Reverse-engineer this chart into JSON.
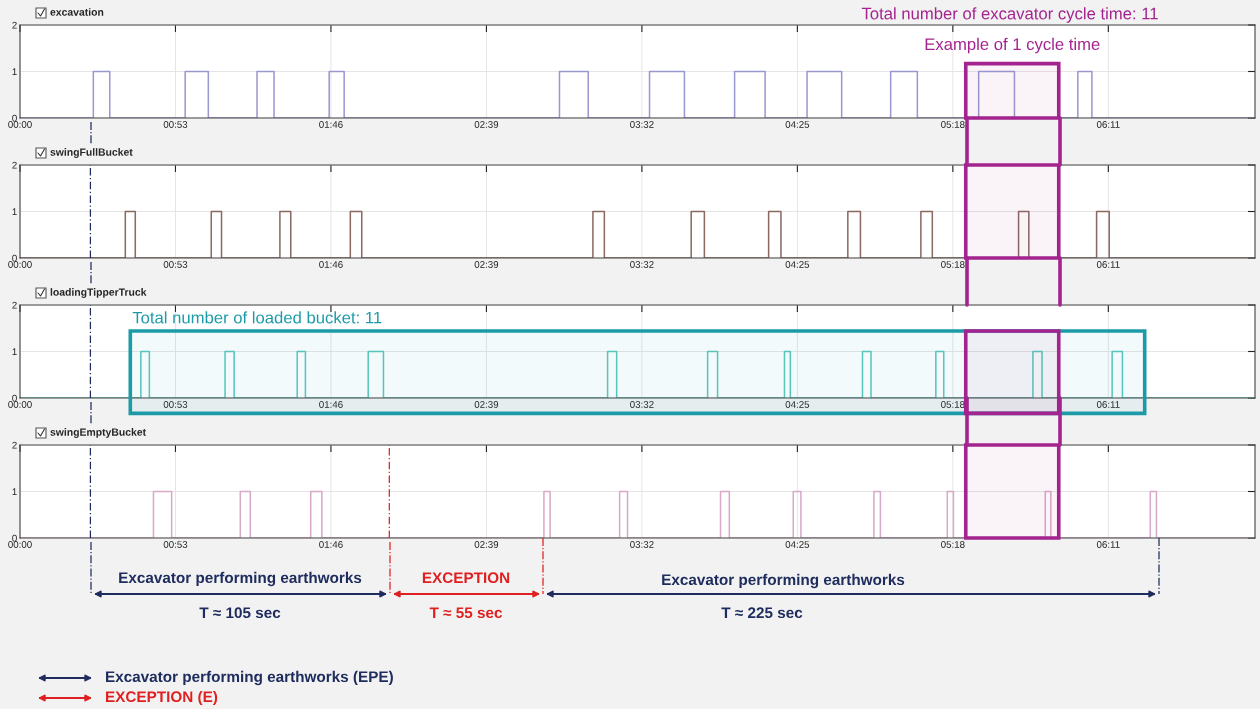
{
  "chart_data": [
    {
      "type": "step",
      "title": "excavation",
      "xlim": [
        0,
        421
      ],
      "ylim": [
        0,
        2
      ],
      "yticks": [
        0,
        1,
        2
      ],
      "grid": true,
      "xticks": [
        {
          "value": 0,
          "label": "00:00"
        },
        {
          "value": 53,
          "label": "00:53"
        },
        {
          "value": 106,
          "label": "01:46"
        },
        {
          "value": 159,
          "label": "02:39"
        },
        {
          "value": 212,
          "label": "03:32"
        },
        {
          "value": 265,
          "label": "04:25"
        },
        {
          "value": 318,
          "label": "05:18"
        },
        {
          "value": 371,
          "label": "06:11"
        }
      ],
      "series": [
        {
          "color": "#9a98d0",
          "x": [
            0,
            25.0,
            30.6,
            56.3,
            64.2,
            80.8,
            86.6,
            105.4,
            110.5,
            183.9,
            193.7,
            214.6,
            226.5,
            243.6,
            254.0,
            268.3,
            280.1,
            296.8,
            305.9,
            326.8,
            339.0,
            360.6,
            365.4,
            421
          ],
          "values": [
            0,
            1,
            0,
            1,
            0,
            1,
            0,
            1,
            0,
            1,
            0,
            1,
            0,
            1,
            0,
            1,
            0,
            1,
            0,
            1,
            0,
            1,
            0,
            0
          ]
        }
      ],
      "bands": [
        {
          "axis": "x",
          "from": 322.4,
          "to": 354.1,
          "label": "Example of 1 cycle time",
          "color": "#a3238f"
        }
      ],
      "annotations": [
        "Total number of excavator cycle time: 11"
      ]
    },
    {
      "type": "step",
      "title": "swingFullBucket",
      "xlim": [
        0,
        421
      ],
      "ylim": [
        0,
        2
      ],
      "yticks": [
        0,
        1,
        2
      ],
      "grid": true,
      "xticks": [
        {
          "value": 0,
          "label": "00:00"
        },
        {
          "value": 53,
          "label": "00:53"
        },
        {
          "value": 106,
          "label": "01:46"
        },
        {
          "value": 159,
          "label": "02:39"
        },
        {
          "value": 212,
          "label": "03:32"
        },
        {
          "value": 265,
          "label": "04:25"
        },
        {
          "value": 318,
          "label": "05:18"
        },
        {
          "value": 371,
          "label": "06:11"
        }
      ],
      "series": [
        {
          "color": "#8b6a62",
          "x": [
            0,
            35.9,
            39.3,
            65.2,
            68.7,
            88.6,
            92.3,
            112.6,
            116.5,
            195.3,
            199.2,
            228.8,
            233.3,
            255.2,
            259.4,
            282.2,
            286.5,
            307.1,
            311.0,
            340.4,
            343.9,
            367.0,
            371.3,
            421
          ],
          "values": [
            0,
            1,
            0,
            1,
            0,
            1,
            0,
            1,
            0,
            1,
            0,
            1,
            0,
            1,
            0,
            1,
            0,
            1,
            0,
            1,
            0,
            1,
            0,
            0
          ]
        }
      ],
      "bands": [
        {
          "axis": "x",
          "from": 322.4,
          "to": 354.1,
          "color": "#a3238f"
        }
      ],
      "ref_lines": [
        {
          "axis": "x",
          "value": 24.0,
          "color": "#1f2d5e",
          "line_style": "dashed"
        }
      ]
    },
    {
      "type": "step",
      "title": "loadingTipperTruck",
      "xlim": [
        0,
        421
      ],
      "ylim": [
        0,
        2
      ],
      "yticks": [
        0,
        1,
        2
      ],
      "grid": true,
      "xticks": [
        {
          "value": 0,
          "label": "00:00"
        },
        {
          "value": 53,
          "label": "00:53"
        },
        {
          "value": 106,
          "label": "01:46"
        },
        {
          "value": 159,
          "label": "02:39"
        },
        {
          "value": 212,
          "label": "03:32"
        },
        {
          "value": 265,
          "label": "04:25"
        },
        {
          "value": 318,
          "label": "05:18"
        },
        {
          "value": 371,
          "label": "06:11"
        }
      ],
      "series": [
        {
          "color": "#5cc8be",
          "x": [
            0,
            41.2,
            44.1,
            69.9,
            73.0,
            94.5,
            97.3,
            118.7,
            123.9,
            200.3,
            203.4,
            234.4,
            237.8,
            260.6,
            262.6,
            287.2,
            290.1,
            312.2,
            314.9,
            345.3,
            348.4,
            372.3,
            375.8,
            421
          ],
          "values": [
            0,
            1,
            0,
            1,
            0,
            1,
            0,
            1,
            0,
            1,
            0,
            1,
            0,
            1,
            0,
            1,
            0,
            1,
            0,
            1,
            0,
            1,
            0,
            0
          ]
        }
      ],
      "bands": [
        {
          "axis": "x",
          "from": 37.6,
          "to": 383.4,
          "label": "Total number of loaded bucket: 11",
          "color": "#1c9aa8"
        },
        {
          "axis": "x",
          "from": 322.4,
          "to": 354.1,
          "color": "#a3238f"
        }
      ],
      "ref_lines": [
        {
          "axis": "x",
          "value": 24.0,
          "color": "#1f2d5e",
          "line_style": "dashed"
        }
      ]
    },
    {
      "type": "step",
      "title": "swingEmptyBucket",
      "xlim": [
        0,
        421
      ],
      "ylim": [
        0,
        2
      ],
      "yticks": [
        0,
        1,
        2
      ],
      "grid": true,
      "xticks": [
        {
          "value": 0,
          "label": "00:00"
        },
        {
          "value": 53,
          "label": "00:53"
        },
        {
          "value": 106,
          "label": "01:46"
        },
        {
          "value": 159,
          "label": "02:39"
        },
        {
          "value": 212,
          "label": "03:32"
        },
        {
          "value": 265,
          "label": "04:25"
        },
        {
          "value": 318,
          "label": "05:18"
        },
        {
          "value": 371,
          "label": "06:11"
        }
      ],
      "series": [
        {
          "color": "#d9a9c8",
          "x": [
            0,
            45.5,
            51.7,
            75.1,
            78.5,
            99.1,
            102.9,
            178.6,
            180.7,
            204.4,
            207.1,
            238.8,
            241.8,
            263.6,
            266.2,
            291.1,
            293.3,
            316.1,
            318.2,
            349.5,
            351.4,
            385.3,
            387.4,
            421
          ],
          "values": [
            0,
            1,
            0,
            1,
            0,
            1,
            0,
            1,
            0,
            1,
            0,
            1,
            0,
            1,
            0,
            1,
            0,
            1,
            0,
            1,
            0,
            1,
            0,
            0
          ]
        }
      ],
      "bands": [
        {
          "axis": "x",
          "from": 322.4,
          "to": 354.1,
          "color": "#a3238f"
        }
      ],
      "ref_lines": [
        {
          "axis": "x",
          "value": 24.0,
          "color": "#1f2d5e",
          "line_style": "dashed"
        },
        {
          "axis": "x",
          "value": 125.9,
          "color": "#e02020",
          "line_style": "dashed"
        }
      ],
      "annotations": [
        "Excavator performing earthworks",
        "T ≈ 105 sec",
        "EXCEPTION",
        "T ≈ 55 sec",
        "Excavator performing earthworks",
        "T ≈ 225 sec",
        "Excavator performing earthworks (EPE)",
        "EXCEPTION (E)"
      ]
    }
  ]
}
